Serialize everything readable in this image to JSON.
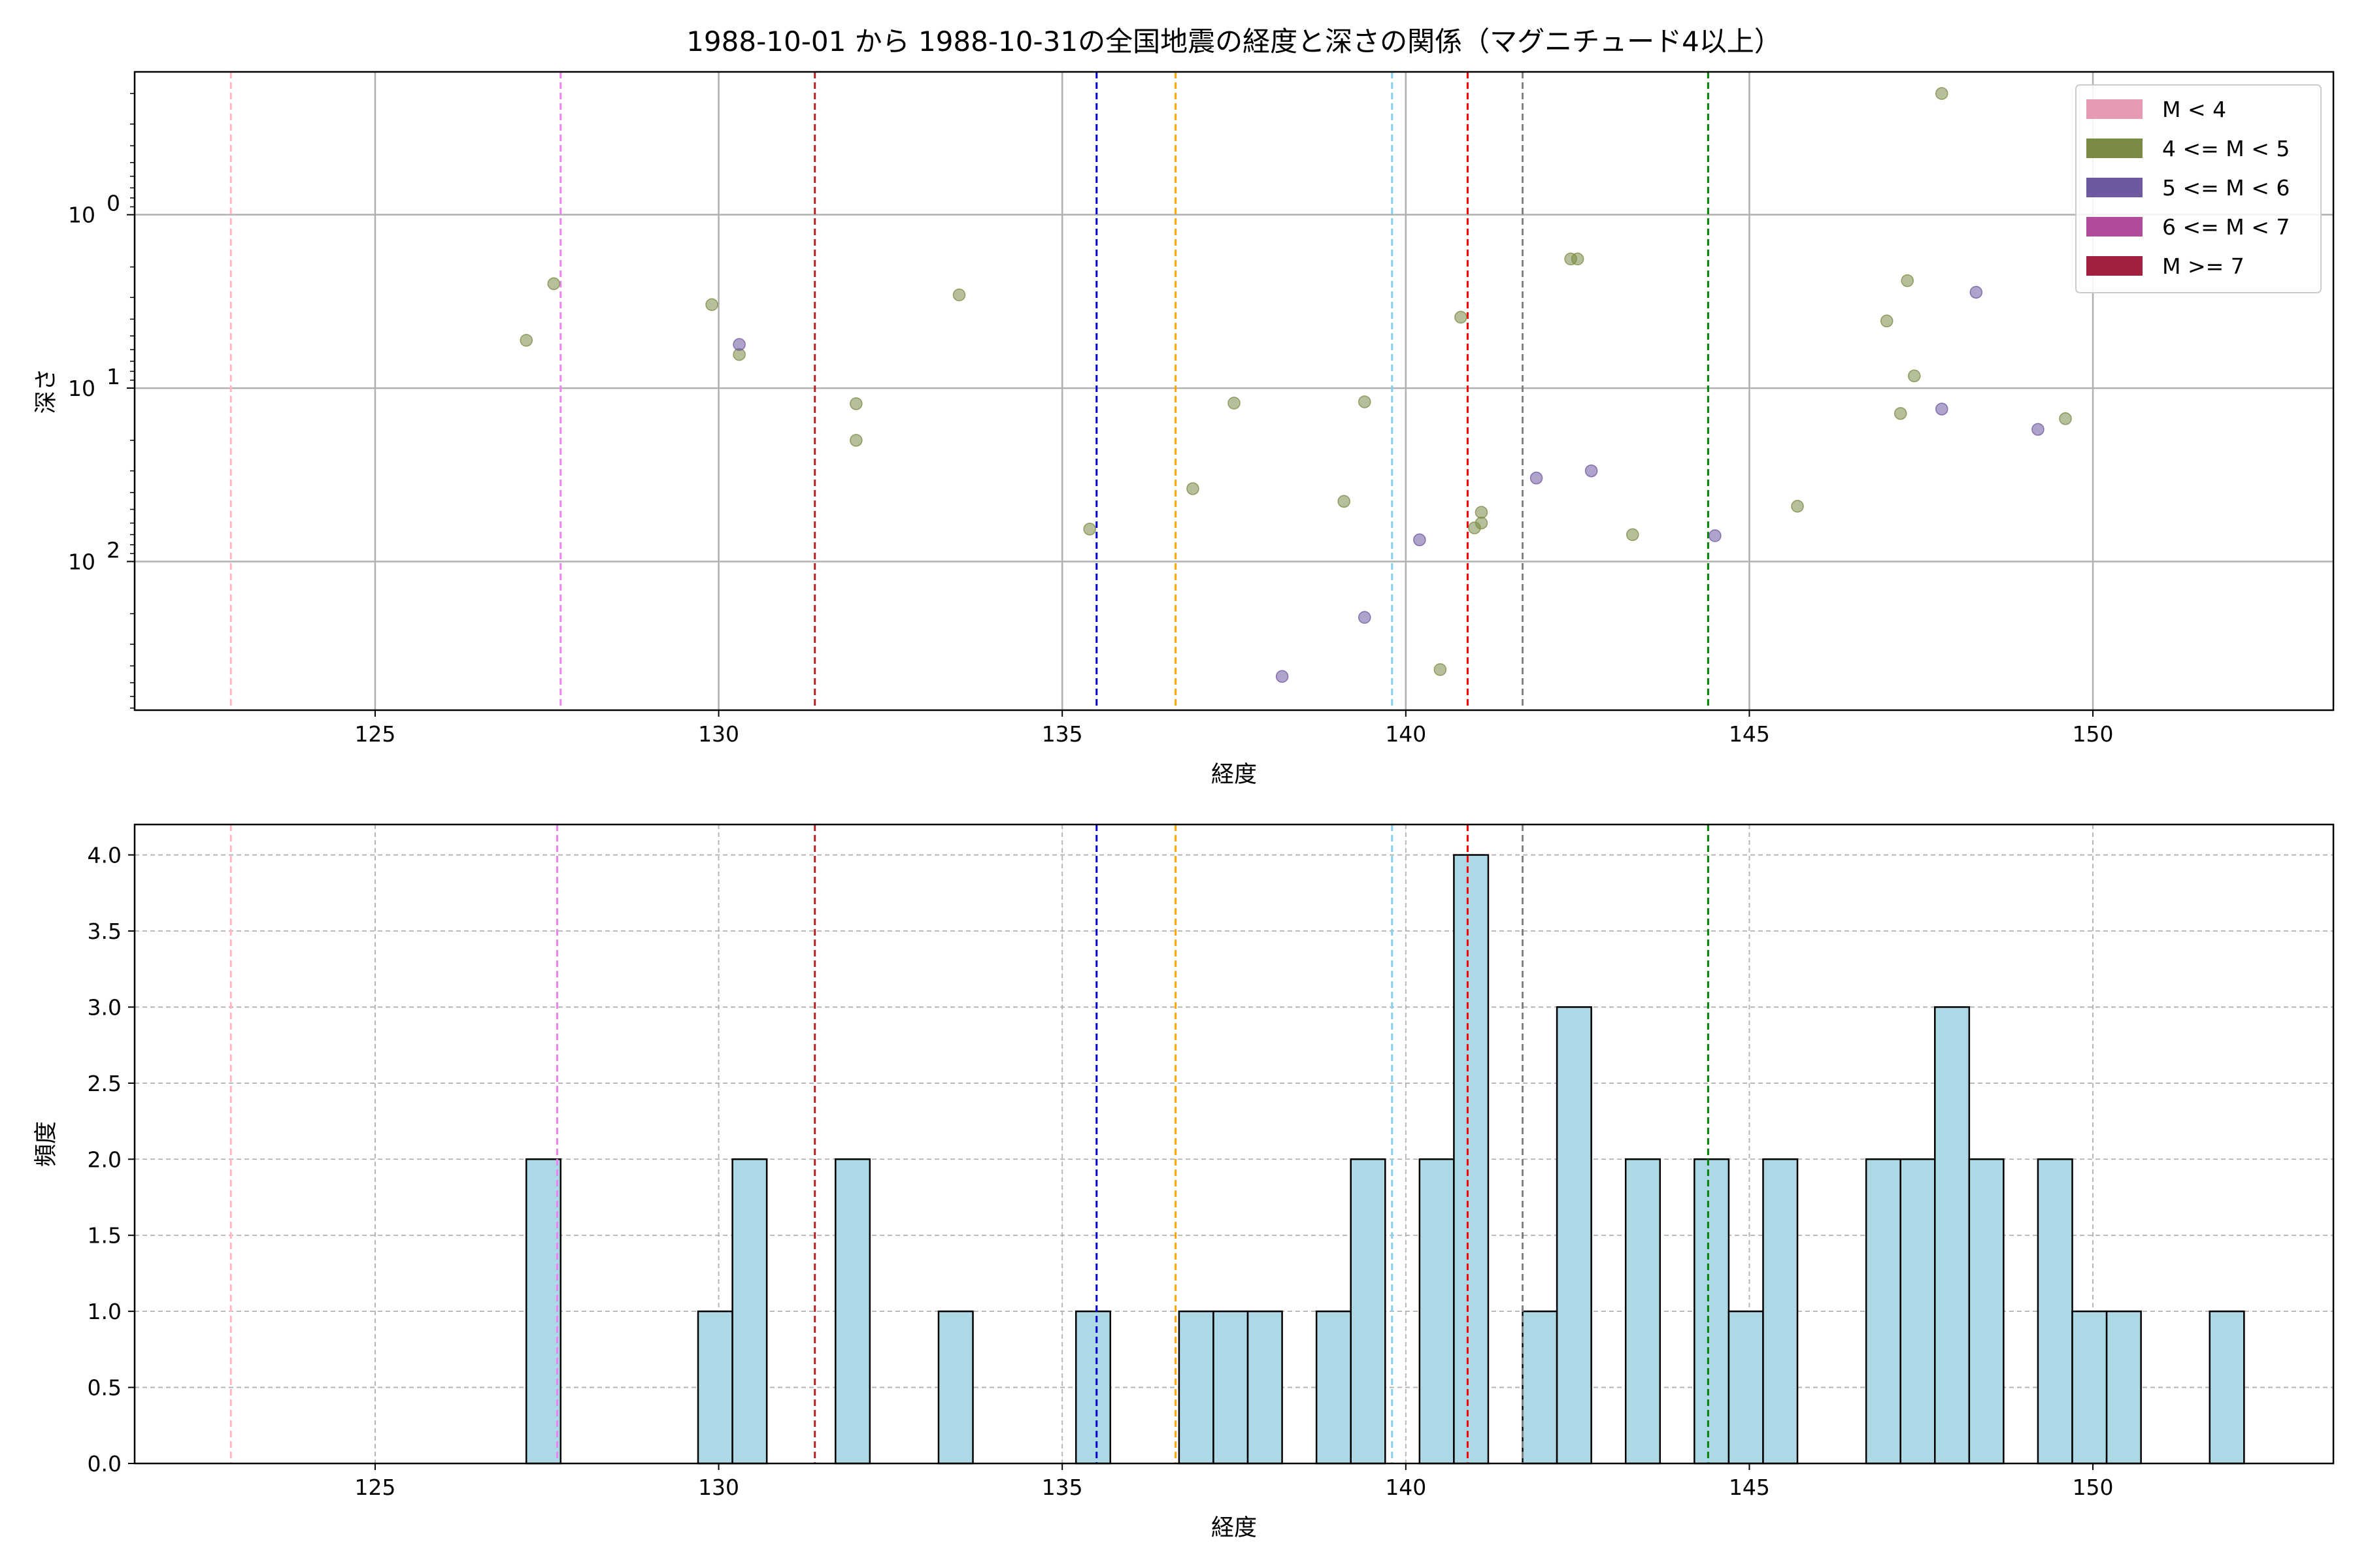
{
  "chart_data": [
    {
      "type": "scatter",
      "title": "1988-10-01 から 1988-10-31の全国地震の経度と深さの関係（マグニチュード4以上）",
      "xlabel": "経度",
      "ylabel": "深さ",
      "xlim": [
        121.5,
        153.5
      ],
      "ylim": [
        720,
        0.15
      ],
      "yscale": "log",
      "y_inverted": true,
      "grid": true,
      "legend_placement": "top-right",
      "xticks": [
        125,
        130,
        135,
        140,
        145,
        150
      ],
      "yticks": [
        {
          "value": 1,
          "base": "10",
          "exp": "0"
        },
        {
          "value": 10,
          "base": "10",
          "exp": "1"
        },
        {
          "value": 100,
          "base": "10",
          "exp": "2"
        }
      ],
      "legend": [
        {
          "label": "M < 4",
          "color": "#e89ab5"
        },
        {
          "label": "4 <= M < 5",
          "color": "#7a8b45"
        },
        {
          "label": "5 <= M < 6",
          "color": "#6e58a0"
        },
        {
          "label": "6 <= M < 7",
          "color": "#b24b9c"
        },
        {
          "label": "M >= 7",
          "color": "#a0203f"
        }
      ],
      "series": [
        {
          "name": "4 <= M < 5",
          "color": "#7a8b45",
          "points": [
            [
              127.2,
              5.3
            ],
            [
              127.6,
              2.5
            ],
            [
              129.9,
              3.3
            ],
            [
              130.3,
              6.4
            ],
            [
              132.0,
              12.3
            ],
            [
              132.0,
              20
            ],
            [
              133.5,
              2.9
            ],
            [
              135.4,
              65
            ],
            [
              136.9,
              38
            ],
            [
              137.5,
              12.2
            ],
            [
              139.1,
              45
            ],
            [
              139.4,
              12
            ],
            [
              140.5,
              420
            ],
            [
              140.8,
              3.9
            ],
            [
              141.0,
              64
            ],
            [
              141.1,
              60
            ],
            [
              141.1,
              52
            ],
            [
              142.4,
              1.8
            ],
            [
              142.5,
              1.8
            ],
            [
              143.3,
              70
            ],
            [
              145.7,
              48
            ],
            [
              147.0,
              4.1
            ],
            [
              147.2,
              14
            ],
            [
              147.3,
              2.4
            ],
            [
              147.4,
              8.5
            ],
            [
              147.8,
              0.2
            ],
            [
              149.6,
              15
            ]
          ]
        },
        {
          "name": "5 <= M < 6",
          "color": "#6e58a0",
          "points": [
            [
              130.3,
              5.6
            ],
            [
              138.2,
              460
            ],
            [
              139.4,
              210
            ],
            [
              140.2,
              75
            ],
            [
              141.9,
              33
            ],
            [
              142.7,
              30
            ],
            [
              144.5,
              71
            ],
            [
              147.8,
              13.2
            ],
            [
              148.3,
              2.8
            ],
            [
              149.2,
              17.3
            ]
          ]
        }
      ],
      "vlines": [
        {
          "x": 122.9,
          "color": "#ffb6c1"
        },
        {
          "x": 127.7,
          "color": "#ee82ee"
        },
        {
          "x": 131.4,
          "color": "#b22222"
        },
        {
          "x": 135.5,
          "color": "#0000cd"
        },
        {
          "x": 136.65,
          "color": "#ffa500"
        },
        {
          "x": 139.8,
          "color": "#87ceeb"
        },
        {
          "x": 140.9,
          "color": "#ff0000"
        },
        {
          "x": 141.7,
          "color": "#808080"
        },
        {
          "x": 144.4,
          "color": "#008000"
        }
      ]
    },
    {
      "type": "bar",
      "title": "",
      "xlabel": "経度",
      "ylabel": "頻度",
      "xlim": [
        121.5,
        153.5
      ],
      "ylim": [
        0,
        4.2
      ],
      "grid": true,
      "bar_color": "#add8e6",
      "xticks": [
        125,
        130,
        135,
        140,
        145,
        150
      ],
      "yticks": [
        "0.0",
        "0.5",
        "1.0",
        "1.5",
        "2.0",
        "2.5",
        "3.0",
        "3.5",
        "4.0"
      ],
      "bin_width": 0.5,
      "bins": [
        {
          "start": 127.2,
          "value": 2
        },
        {
          "start": 129.7,
          "value": 1
        },
        {
          "start": 130.2,
          "value": 2
        },
        {
          "start": 131.7,
          "value": 2
        },
        {
          "start": 133.2,
          "value": 1
        },
        {
          "start": 135.2,
          "value": 1
        },
        {
          "start": 136.7,
          "value": 1
        },
        {
          "start": 137.2,
          "value": 1
        },
        {
          "start": 137.7,
          "value": 1
        },
        {
          "start": 138.7,
          "value": 1
        },
        {
          "start": 139.2,
          "value": 2
        },
        {
          "start": 140.2,
          "value": 2
        },
        {
          "start": 140.7,
          "value": 4
        },
        {
          "start": 141.7,
          "value": 1
        },
        {
          "start": 142.2,
          "value": 3
        },
        {
          "start": 143.2,
          "value": 2
        },
        {
          "start": 144.2,
          "value": 2
        },
        {
          "start": 144.7,
          "value": 1
        },
        {
          "start": 145.2,
          "value": 2
        },
        {
          "start": 146.7,
          "value": 2
        },
        {
          "start": 147.2,
          "value": 2
        },
        {
          "start": 147.7,
          "value": 3
        },
        {
          "start": 148.2,
          "value": 2
        },
        {
          "start": 149.2,
          "value": 2
        },
        {
          "start": 149.7,
          "value": 1
        },
        {
          "start": 150.2,
          "value": 1
        },
        {
          "start": 151.7,
          "value": 1
        }
      ],
      "vlines": [
        {
          "x": 122.9,
          "color": "#ffb6c1"
        },
        {
          "x": 127.65,
          "color": "#ee82ee"
        },
        {
          "x": 131.4,
          "color": "#b22222"
        },
        {
          "x": 135.5,
          "color": "#0000cd"
        },
        {
          "x": 136.65,
          "color": "#ffa500"
        },
        {
          "x": 139.8,
          "color": "#87ceeb"
        },
        {
          "x": 140.9,
          "color": "#ff0000"
        },
        {
          "x": 141.7,
          "color": "#808080"
        },
        {
          "x": 144.4,
          "color": "#008000"
        }
      ]
    }
  ]
}
